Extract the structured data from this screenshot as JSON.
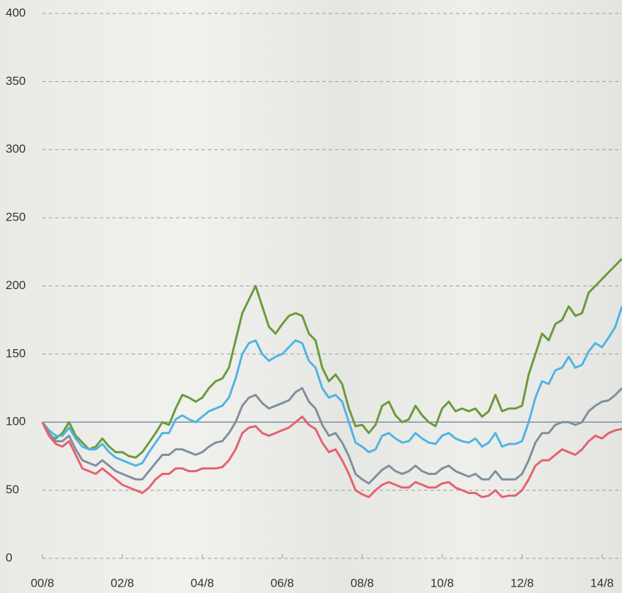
{
  "chart_data": {
    "type": "line",
    "categories": [
      "00/8",
      null,
      null,
      null,
      null,
      null,
      null,
      null,
      null,
      null,
      null,
      null,
      "02/8",
      null,
      null,
      null,
      null,
      null,
      null,
      null,
      null,
      null,
      null,
      null,
      "04/8",
      null,
      null,
      null,
      null,
      null,
      null,
      null,
      null,
      null,
      null,
      null,
      "06/8",
      null,
      null,
      null,
      null,
      null,
      null,
      null,
      null,
      null,
      null,
      null,
      "08/8",
      null,
      null,
      null,
      null,
      null,
      null,
      null,
      null,
      null,
      null,
      null,
      "10/8",
      null,
      null,
      null,
      null,
      null,
      null,
      null,
      null,
      null,
      null,
      null,
      "12/8",
      null,
      null,
      null,
      null,
      null,
      null,
      null,
      null,
      null,
      null,
      null,
      "14/8",
      null,
      null,
      null
    ],
    "series": [
      {
        "color": "#6a9a3a",
        "values": [
          100,
          90,
          88,
          92,
          100,
          90,
          85,
          80,
          82,
          88,
          82,
          78,
          78,
          75,
          74,
          78,
          85,
          92,
          100,
          98,
          110,
          120,
          118,
          115,
          118,
          125,
          130,
          132,
          140,
          160,
          180,
          190,
          200,
          185,
          170,
          165,
          172,
          178,
          180,
          178,
          165,
          160,
          140,
          130,
          135,
          128,
          110,
          97,
          98,
          92,
          98,
          112,
          115,
          105,
          100,
          102,
          112,
          105,
          100,
          97,
          110,
          115,
          108,
          110,
          108,
          110,
          104,
          108,
          120,
          108,
          110,
          110,
          112,
          135,
          150,
          165,
          160,
          172,
          175,
          185,
          178,
          180,
          195,
          200,
          205,
          210,
          215,
          220
        ]
      },
      {
        "color": "#4fb3e4",
        "values": [
          100,
          94,
          90,
          90,
          96,
          88,
          82,
          80,
          80,
          84,
          78,
          74,
          72,
          70,
          68,
          70,
          78,
          85,
          92,
          92,
          102,
          105,
          102,
          100,
          104,
          108,
          110,
          112,
          118,
          132,
          150,
          158,
          160,
          150,
          145,
          148,
          150,
          155,
          160,
          158,
          145,
          140,
          125,
          118,
          120,
          115,
          100,
          85,
          82,
          78,
          80,
          90,
          92,
          88,
          85,
          86,
          92,
          88,
          85,
          84,
          90,
          92,
          88,
          86,
          85,
          88,
          82,
          85,
          92,
          82,
          84,
          84,
          86,
          100,
          118,
          130,
          128,
          138,
          140,
          148,
          140,
          142,
          152,
          158,
          155,
          162,
          170,
          185
        ]
      },
      {
        "color": "#7f8f9c",
        "values": [
          100,
          92,
          86,
          86,
          90,
          80,
          72,
          70,
          68,
          72,
          68,
          64,
          62,
          60,
          58,
          58,
          64,
          70,
          76,
          76,
          80,
          80,
          78,
          76,
          78,
          82,
          85,
          86,
          92,
          100,
          112,
          118,
          120,
          114,
          110,
          112,
          114,
          116,
          122,
          125,
          115,
          110,
          98,
          90,
          92,
          85,
          75,
          62,
          58,
          55,
          60,
          65,
          68,
          64,
          62,
          64,
          68,
          64,
          62,
          62,
          66,
          68,
          64,
          62,
          60,
          62,
          58,
          58,
          64,
          58,
          58,
          58,
          62,
          72,
          85,
          92,
          92,
          98,
          100,
          100,
          98,
          100,
          108,
          112,
          115,
          116,
          120,
          125
        ]
      },
      {
        "color": "#e5606e",
        "values": [
          100,
          90,
          84,
          82,
          86,
          76,
          66,
          64,
          62,
          66,
          62,
          58,
          54,
          52,
          50,
          48,
          52,
          58,
          62,
          62,
          66,
          66,
          64,
          64,
          66,
          66,
          66,
          67,
          72,
          80,
          92,
          96,
          97,
          92,
          90,
          92,
          94,
          96,
          100,
          104,
          98,
          95,
          85,
          78,
          80,
          72,
          62,
          50,
          47,
          45,
          50,
          54,
          56,
          54,
          52,
          52,
          56,
          54,
          52,
          52,
          55,
          56,
          52,
          50,
          48,
          48,
          45,
          46,
          50,
          45,
          46,
          46,
          50,
          58,
          68,
          72,
          72,
          76,
          80,
          78,
          76,
          80,
          86,
          90,
          88,
          92,
          94,
          95
        ]
      }
    ],
    "reference_line": 100,
    "ylim": [
      0,
      400
    ],
    "yticks": [
      0,
      50,
      100,
      150,
      200,
      250,
      300,
      350,
      400
    ],
    "grid": true
  }
}
